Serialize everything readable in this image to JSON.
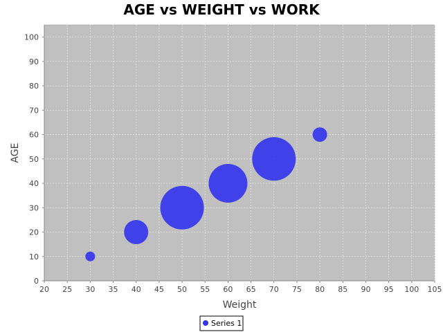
{
  "chart_data": {
    "type": "scatter",
    "title": "AGE vs WEIGHT vs WORK",
    "xlabel": "Weight",
    "ylabel": "AGE",
    "xlim": [
      20,
      105
    ],
    "ylim": [
      0,
      105
    ],
    "x_ticks": [
      "20",
      "25",
      "30",
      "35",
      "40",
      "45",
      "50",
      "55",
      "60",
      "65",
      "70",
      "75",
      "80",
      "85",
      "90",
      "95",
      "100",
      "105"
    ],
    "y_ticks": [
      "0",
      "10",
      "20",
      "30",
      "40",
      "50",
      "60",
      "70",
      "80",
      "90",
      "100"
    ],
    "grid": true,
    "legend_placement": "bottom-center",
    "colors": {
      "plot_background": "#c0c0c0",
      "bubble": "#3333ee",
      "gridline": "#e6e6e6"
    },
    "series": [
      {
        "name": "Series 1",
        "x": [
          30,
          40,
          50,
          60,
          70,
          80
        ],
        "y": [
          10,
          20,
          30,
          40,
          50,
          60
        ],
        "size": [
          2,
          5,
          9,
          8,
          9,
          3
        ]
      }
    ]
  }
}
